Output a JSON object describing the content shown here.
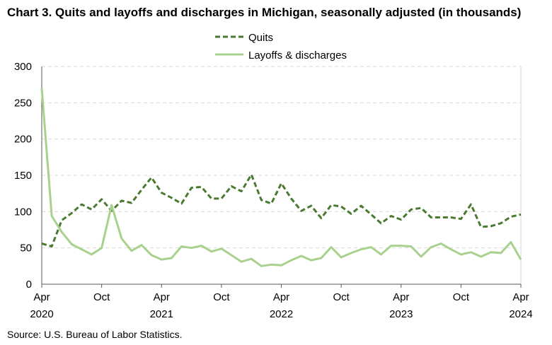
{
  "title": "Chart 3. Quits and layoffs and discharges in Michigan, seasonally adjusted (in thousands)",
  "source": "Source: U.S. Bureau of Labor Statistics.",
  "colors": {
    "quits": "#4a7a30",
    "layoffs": "#a9d18e",
    "grid": "#d9d9d9",
    "axis": "#595959"
  },
  "chart_data": {
    "type": "line",
    "title": "Chart 3. Quits and layoffs and discharges in Michigan, seasonally adjusted (in thousands)",
    "xlabel": "",
    "ylabel": "",
    "ylim": [
      0,
      300
    ],
    "yticks": [
      0,
      50,
      100,
      150,
      200,
      250,
      300
    ],
    "grid": true,
    "legend_position": "top-center",
    "x": [
      "2020-04",
      "2020-05",
      "2020-06",
      "2020-07",
      "2020-08",
      "2020-09",
      "2020-10",
      "2020-11",
      "2020-12",
      "2021-01",
      "2021-02",
      "2021-03",
      "2021-04",
      "2021-05",
      "2021-06",
      "2021-07",
      "2021-08",
      "2021-09",
      "2021-10",
      "2021-11",
      "2021-12",
      "2022-01",
      "2022-02",
      "2022-03",
      "2022-04",
      "2022-05",
      "2022-06",
      "2022-07",
      "2022-08",
      "2022-09",
      "2022-10",
      "2022-11",
      "2022-12",
      "2023-01",
      "2023-02",
      "2023-03",
      "2023-04",
      "2023-05",
      "2023-06",
      "2023-07",
      "2023-08",
      "2023-09",
      "2023-10",
      "2023-11",
      "2023-12",
      "2024-01",
      "2024-02",
      "2024-03",
      "2024-04"
    ],
    "x_tick_labels": [
      {
        "month": "Apr",
        "year": "2020"
      },
      {
        "month": "Oct",
        "year": ""
      },
      {
        "month": "Apr",
        "year": "2021"
      },
      {
        "month": "Oct",
        "year": ""
      },
      {
        "month": "Apr",
        "year": "2022"
      },
      {
        "month": "Oct",
        "year": ""
      },
      {
        "month": "Apr",
        "year": "2023"
      },
      {
        "month": "Oct",
        "year": ""
      },
      {
        "month": "Apr",
        "year": "2024"
      }
    ],
    "series": [
      {
        "name": "Quits",
        "style": "dashed",
        "values": [
          56,
          52,
          88,
          98,
          110,
          103,
          117,
          101,
          115,
          112,
          130,
          147,
          126,
          119,
          111,
          133,
          134,
          118,
          118,
          135,
          128,
          151,
          116,
          111,
          139,
          118,
          101,
          108,
          91,
          109,
          107,
          97,
          108,
          96,
          84,
          94,
          89,
          103,
          105,
          92,
          92,
          92,
          90,
          110,
          79,
          80,
          84,
          93,
          96
        ]
      },
      {
        "name": "Layoffs & discharges",
        "style": "solid",
        "values": [
          270,
          94,
          72,
          55,
          48,
          41,
          50,
          109,
          63,
          46,
          54,
          40,
          34,
          36,
          52,
          50,
          53,
          45,
          49,
          40,
          31,
          35,
          25,
          27,
          26,
          33,
          39,
          33,
          36,
          51,
          37,
          43,
          48,
          51,
          41,
          53,
          53,
          52,
          38,
          51,
          56,
          48,
          41,
          44,
          38,
          44,
          43,
          58,
          34
        ]
      }
    ]
  }
}
